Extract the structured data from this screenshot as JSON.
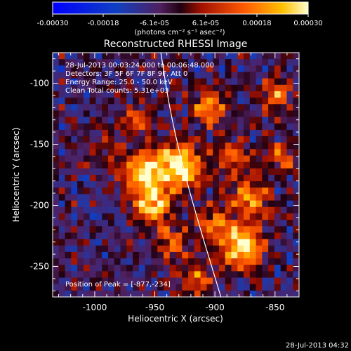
{
  "colorbar": {
    "ticks": [
      "-0.00030",
      "-0.00018",
      "-6.1e-05",
      "6.1e-05",
      "0.00018",
      "0.00030"
    ],
    "unit_label": "(photons cm⁻² s⁻¹ asec⁻²)"
  },
  "chart_data": {
    "type": "heatmap",
    "title": "Reconstructed RHESSI Image",
    "xlabel": "Heliocentric X (arcsec)",
    "ylabel": "Heliocentric Y (arcsec)",
    "xlim": [
      -1035,
      -830
    ],
    "ylim": [
      -275,
      -75
    ],
    "x_ticks": [
      "-1000",
      "-950",
      "-900",
      "-850"
    ],
    "x_tick_values": [
      -1000,
      -950,
      -900,
      -850
    ],
    "y_ticks": [
      "-100",
      "-150",
      "-200",
      "-250"
    ],
    "y_tick_values": [
      -100,
      -150,
      -200,
      -250
    ],
    "colormap_range": [
      -0.0003,
      0.0003
    ],
    "peak": [
      -877,
      -234
    ],
    "annotations": [
      "28-Jul-2013 00:03:24.000 to 00:06:48.000",
      "Detectors: 3F 5F 6F 7F 8F 9F, Att 0",
      "Energy Range: 25.0 - 50.0 keV",
      "Clean      Total counts: 5.31e+03"
    ],
    "peak_label": "Position of Peak = [-877,-234]",
    "limb_curve": [
      [
        -945,
        -75
      ],
      [
        -937,
        -125
      ],
      [
        -925,
        -175
      ],
      [
        -912,
        -220
      ],
      [
        -895,
        -275
      ]
    ],
    "sources": [
      {
        "x": -930,
        "y": -168,
        "amp": 1.0,
        "sigma": 14
      },
      {
        "x": -960,
        "y": -175,
        "amp": 0.85,
        "sigma": 13
      },
      {
        "x": -952,
        "y": -200,
        "amp": 0.85,
        "sigma": 10
      },
      {
        "x": -877,
        "y": -234,
        "amp": 1.05,
        "sigma": 12
      },
      {
        "x": -905,
        "y": -120,
        "amp": 0.7,
        "sigma": 10
      },
      {
        "x": -870,
        "y": -195,
        "amp": 0.75,
        "sigma": 11
      },
      {
        "x": -900,
        "y": -215,
        "amp": 0.6,
        "sigma": 10
      },
      {
        "x": -935,
        "y": -230,
        "amp": 0.55,
        "sigma": 10
      },
      {
        "x": -915,
        "y": -260,
        "amp": 0.55,
        "sigma": 9
      },
      {
        "x": -850,
        "y": -110,
        "amp": 0.6,
        "sigma": 9
      },
      {
        "x": -845,
        "y": -160,
        "amp": 0.55,
        "sigma": 9
      },
      {
        "x": -965,
        "y": -130,
        "amp": 0.45,
        "sigma": 9
      },
      {
        "x": -990,
        "y": -150,
        "amp": 0.35,
        "sigma": 10
      },
      {
        "x": -885,
        "y": -160,
        "amp": 0.55,
        "sigma": 10
      }
    ]
  },
  "footer": {
    "timestamp": "28-Jul-2013 04:32"
  }
}
